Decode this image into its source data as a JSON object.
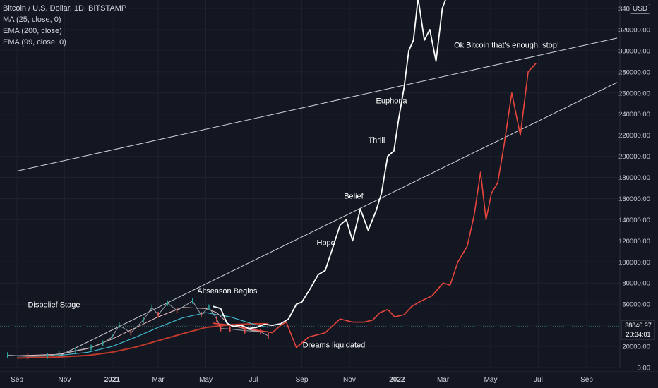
{
  "legend": {
    "title": "Bitcoin / U.S. Dollar, 1D, BITSTAMP",
    "indicators": [
      "MA (25, close, 0)",
      "EMA (200, close)",
      "EMA (99, close, 0)"
    ]
  },
  "currency_badge": "USD",
  "current_price": {
    "value": "38840.97",
    "countdown": "20:34:01"
  },
  "colors": {
    "background": "#131722",
    "projection_white": "#ffffff",
    "projection_red": "#e8453c",
    "ma25": "#f0c0c0",
    "ema200": "#c0392b",
    "ema99": "#3fb7c9",
    "trendline": "#d1d4dc",
    "price_line": "#3a7f8c"
  },
  "chart_data": {
    "type": "line",
    "title": "Bitcoin / U.S. Dollar, 1D, BITSTAMP",
    "ylim": [
      0,
      345000
    ],
    "y_ticks": [
      0,
      20000,
      40000,
      60000,
      80000,
      100000,
      120000,
      140000,
      160000,
      180000,
      200000,
      220000,
      240000,
      260000,
      280000,
      300000,
      320000,
      340000
    ],
    "x_ticks": [
      "Sep",
      "Nov",
      "2021",
      "Mar",
      "May",
      "Jul",
      "Sep",
      "Nov",
      "2022",
      "Mar",
      "May",
      "Jul",
      "Sep"
    ],
    "x_tick_dates": [
      "2020-09-01",
      "2020-11-01",
      "2021-01-01",
      "2021-03-01",
      "2021-05-01",
      "2021-07-01",
      "2021-09-01",
      "2021-11-01",
      "2022-01-01",
      "2022-03-01",
      "2022-05-01",
      "2022-07-01",
      "2022-09-01"
    ],
    "series": [
      {
        "name": "",
        "style": "price-history",
        "x": [
          "2020-08-20",
          "2020-09-15",
          "2020-10-10",
          "2020-10-25",
          "2020-11-15",
          "2020-12-05",
          "2020-12-20",
          "2021-01-01",
          "2021-01-10",
          "2021-01-25",
          "2021-02-10",
          "2021-02-21",
          "2021-03-01",
          "2021-03-13",
          "2021-03-25",
          "2021-04-14",
          "2021-04-25",
          "2021-05-05",
          "2021-05-15",
          "2021-05-20",
          "2021-06-01",
          "2021-06-20",
          "2021-07-10",
          "2021-07-20"
        ],
        "y": [
          11800,
          10500,
          11000,
          13000,
          16000,
          19000,
          23000,
          29000,
          40000,
          33000,
          45000,
          57000,
          50000,
          61000,
          54000,
          63000,
          50000,
          57000,
          46000,
          37000,
          36500,
          35000,
          34000,
          30000
        ]
      },
      {
        "name": "",
        "style": "white-projection",
        "x": [
          "2021-05-10",
          "2021-05-20",
          "2021-05-28",
          "2021-06-05",
          "2021-06-15",
          "2021-06-25",
          "2021-07-05",
          "2021-07-15",
          "2021-07-25",
          "2021-08-05",
          "2021-08-15",
          "2021-08-25",
          "2021-09-01",
          "2021-09-12",
          "2021-09-22",
          "2021-10-01",
          "2021-10-10",
          "2021-10-20",
          "2021-10-28",
          "2021-11-05",
          "2021-11-15",
          "2021-11-25",
          "2021-12-05",
          "2021-12-12",
          "2021-12-20",
          "2021-12-28",
          "2022-01-03",
          "2022-01-10",
          "2022-01-16",
          "2022-01-22",
          "2022-01-28",
          "2022-02-05",
          "2022-02-12",
          "2022-02-20",
          "2022-02-28",
          "2022-03-10"
        ],
        "y": [
          58000,
          56000,
          42000,
          39000,
          40000,
          37000,
          38000,
          41000,
          40000,
          41500,
          46000,
          60000,
          62000,
          75000,
          88000,
          92000,
          112000,
          135000,
          140000,
          120000,
          150000,
          130000,
          148000,
          165000,
          200000,
          205000,
          235000,
          265000,
          300000,
          310000,
          350000,
          310000,
          320000,
          290000,
          340000,
          360000
        ]
      },
      {
        "name": "",
        "style": "red-projection",
        "x": [
          "2021-05-10",
          "2021-06-01",
          "2021-07-01",
          "2021-07-25",
          "2021-08-05",
          "2021-08-12",
          "2021-08-25",
          "2021-09-10",
          "2021-10-01",
          "2021-10-20",
          "2021-11-05",
          "2021-11-20",
          "2021-12-01",
          "2021-12-10",
          "2021-12-20",
          "2021-12-29",
          "2022-01-10",
          "2022-01-20",
          "2022-02-01",
          "2022-02-15",
          "2022-03-01",
          "2022-03-10",
          "2022-03-20",
          "2022-04-01",
          "2022-04-10",
          "2022-04-18",
          "2022-04-25",
          "2022-05-02",
          "2022-05-10",
          "2022-05-18",
          "2022-05-28",
          "2022-06-08",
          "2022-06-18",
          "2022-06-28"
        ],
        "y": [
          42000,
          40000,
          36000,
          33000,
          40000,
          43000,
          19000,
          29000,
          33000,
          46000,
          43000,
          43000,
          45000,
          52000,
          55000,
          48000,
          50000,
          58000,
          63000,
          68000,
          80000,
          78000,
          100000,
          115000,
          145000,
          185000,
          140000,
          165000,
          175000,
          210000,
          260000,
          220000,
          280000,
          288000
        ]
      },
      {
        "name": "MA (25, close, 0)",
        "x": [
          "2020-09-01",
          "2020-10-25",
          "2020-12-01",
          "2021-01-01",
          "2021-02-01",
          "2021-03-01",
          "2021-04-01",
          "2021-05-01",
          "2021-05-15",
          "2021-06-01",
          "2021-07-01",
          "2021-07-20"
        ],
        "y": [
          11200,
          12500,
          18000,
          27000,
          38000,
          48000,
          57000,
          56000,
          52000,
          40000,
          35000,
          34000
        ]
      },
      {
        "name": "EMA (99, close, 0)",
        "x": [
          "2020-09-01",
          "2020-10-25",
          "2020-12-01",
          "2021-01-01",
          "2021-02-01",
          "2021-03-01",
          "2021-04-01",
          "2021-05-01",
          "2021-06-01",
          "2021-07-01",
          "2021-07-20"
        ],
        "y": [
          10800,
          11500,
          14500,
          20000,
          29000,
          38000,
          47000,
          52000,
          48000,
          41000,
          38000
        ]
      },
      {
        "name": "EMA (200, close)",
        "x": [
          "2020-09-01",
          "2020-10-25",
          "2020-12-01",
          "2021-01-01",
          "2021-02-01",
          "2021-03-01",
          "2021-04-01",
          "2021-05-01",
          "2021-06-01",
          "2021-07-01",
          "2021-07-20"
        ],
        "y": [
          9000,
          10000,
          11500,
          14500,
          19500,
          25500,
          32000,
          38000,
          40500,
          41500,
          41500
        ]
      }
    ],
    "trendlines": [
      {
        "x": [
          "2020-09-01",
          "2022-10-10"
        ],
        "y": [
          186000,
          312000
        ]
      },
      {
        "x": [
          "2020-10-25",
          "2022-10-10"
        ],
        "y": [
          11000,
          270000
        ]
      }
    ],
    "price_line": 38840.97,
    "annotations": [
      {
        "text": "Disbelief Stage",
        "x": "2020-09-15",
        "y": 57000
      },
      {
        "text": "Altseason Begins",
        "x": "2021-04-20",
        "y": 70000
      },
      {
        "text": "Hope",
        "x": "2021-09-20",
        "y": 116000
      },
      {
        "text": "Belief",
        "x": "2021-10-25",
        "y": 160000
      },
      {
        "text": "Thrill",
        "x": "2021-11-25",
        "y": 213000
      },
      {
        "text": "Euphoria",
        "x": "2021-12-05",
        "y": 250000
      },
      {
        "text": "Ok Bitcoin that's enough, stop!",
        "x": "2022-03-15",
        "y": 303000
      },
      {
        "text": "Dreams liquidated",
        "x": "2021-09-02",
        "y": 19000
      }
    ]
  }
}
